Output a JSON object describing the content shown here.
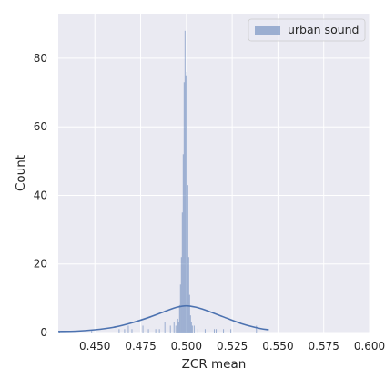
{
  "chart_data": {
    "type": "histogram",
    "xlabel": "ZCR mean",
    "ylabel": "Count",
    "xlim": [
      0.43,
      0.6
    ],
    "ylim": [
      0,
      93
    ],
    "x_ticks": [
      0.45,
      0.475,
      0.5,
      0.525,
      0.55,
      0.575,
      0.6
    ],
    "x_tick_labels": [
      "0.450",
      "0.475",
      "0.500",
      "0.525",
      "0.550",
      "0.575",
      "0.600"
    ],
    "y_ticks": [
      0,
      20,
      40,
      60,
      80
    ],
    "y_tick_labels": [
      "0",
      "20",
      "40",
      "60",
      "80"
    ],
    "grid": true,
    "legend_position": "top-right",
    "legend": [
      {
        "label": "urban sound"
      }
    ],
    "series": [
      {
        "name": "urban sound",
        "kind": "histogram",
        "bins": [
          [
            0.4305,
            0.431,
            0.5
          ],
          [
            0.448,
            0.4485,
            0.5
          ],
          [
            0.463,
            0.4635,
            1
          ],
          [
            0.466,
            0.4665,
            1
          ],
          [
            0.468,
            0.4685,
            2
          ],
          [
            0.47,
            0.4705,
            1
          ],
          [
            0.476,
            0.4765,
            2
          ],
          [
            0.479,
            0.4795,
            1
          ],
          [
            0.483,
            0.4835,
            1
          ],
          [
            0.485,
            0.4855,
            1
          ],
          [
            0.488,
            0.4885,
            3
          ],
          [
            0.491,
            0.4915,
            2
          ],
          [
            0.493,
            0.4935,
            3
          ],
          [
            0.494,
            0.4945,
            2
          ],
          [
            0.495,
            0.4955,
            4
          ],
          [
            0.4955,
            0.496,
            3
          ],
          [
            0.496,
            0.4965,
            8
          ],
          [
            0.4965,
            0.497,
            14
          ],
          [
            0.497,
            0.4975,
            22
          ],
          [
            0.4975,
            0.498,
            35
          ],
          [
            0.498,
            0.4985,
            52
          ],
          [
            0.4985,
            0.499,
            73
          ],
          [
            0.499,
            0.4995,
            88
          ],
          [
            0.4995,
            0.5,
            75
          ],
          [
            0.5,
            0.5005,
            76
          ],
          [
            0.5005,
            0.501,
            43
          ],
          [
            0.501,
            0.5015,
            22
          ],
          [
            0.5015,
            0.502,
            11
          ],
          [
            0.502,
            0.5025,
            5
          ],
          [
            0.5025,
            0.503,
            3
          ],
          [
            0.503,
            0.5035,
            2
          ],
          [
            0.504,
            0.5045,
            2
          ],
          [
            0.506,
            0.5065,
            1
          ],
          [
            0.51,
            0.5105,
            1
          ],
          [
            0.515,
            0.5155,
            1
          ],
          [
            0.516,
            0.5165,
            1
          ],
          [
            0.52,
            0.5205,
            1
          ],
          [
            0.524,
            0.5245,
            1
          ],
          [
            0.538,
            0.5385,
            2
          ]
        ]
      },
      {
        "name": "urban sound",
        "kind": "kde",
        "x": [
          0.43,
          0.44,
          0.45,
          0.46,
          0.47,
          0.48,
          0.49,
          0.495,
          0.5,
          0.505,
          0.51,
          0.52,
          0.53,
          0.54,
          0.545
        ],
        "y": [
          0.3,
          0.4,
          0.8,
          1.5,
          2.8,
          4.5,
          6.5,
          7.4,
          7.8,
          7.4,
          6.6,
          4.6,
          2.6,
          1.2,
          0.8
        ]
      }
    ],
    "colors": {
      "plot_bg": "#eaeaf2",
      "grid": "#ffffff",
      "bar_fill": "#4c72b0",
      "bar_alpha": 0.5,
      "kde_line": "#4c72b0",
      "text": "#262626"
    }
  }
}
